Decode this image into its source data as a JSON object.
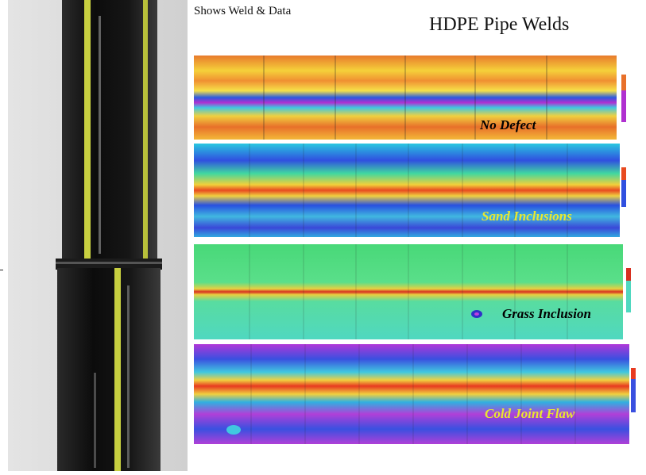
{
  "header": {
    "caption": "Shows Weld & Data",
    "title": "HDPE Pipe Welds"
  },
  "photo": {
    "subject": "photo of black HDPE pipe with yellow stripes joined by a butt weld"
  },
  "panels": [
    {
      "label": "No Defect",
      "label_color": "#000000",
      "dominant": "orange-yellow with a blue/magenta band"
    },
    {
      "label": "Sand Inclusions",
      "label_color": "#e8e830",
      "dominant": "blue with green/yellow/red band"
    },
    {
      "label": "Grass Inclusion",
      "label_color": "#000000",
      "dominant": "green with a red center line"
    },
    {
      "label": "Cold Joint Flaw",
      "label_color": "#e8e830",
      "dominant": "blue/magenta with red/yellow bands"
    }
  ],
  "colors": {
    "pipe": "#111111",
    "stripe": "#c8d040",
    "background": "#ffffff"
  }
}
